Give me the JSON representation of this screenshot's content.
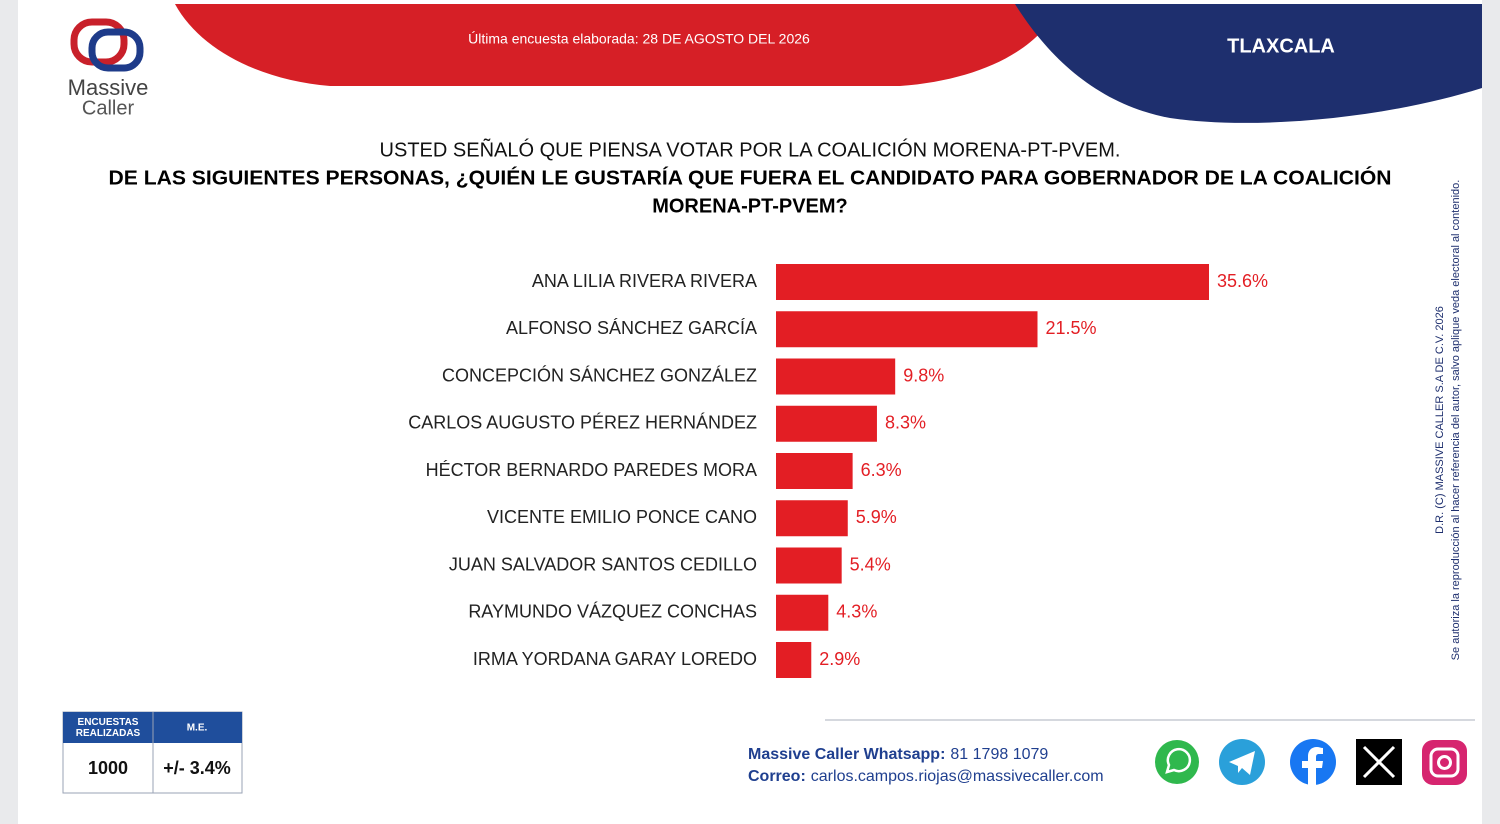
{
  "header": {
    "survey_date": "Última encuesta elaborada: 28 DE AGOSTO DEL 2026",
    "region": "TLAXCALA",
    "logo": {
      "line1": "Massive",
      "line2": "Caller"
    }
  },
  "chart_data": {
    "type": "bar",
    "orientation": "horizontal",
    "title": "USTED SEÑALÓ QUE PIENSA VOTAR POR LA COALICIÓN MORENA-PT-PVEM.",
    "subtitle": [
      "DE LAS SIGUIENTES PERSONAS, ¿QUIÉN LE GUSTARÍA QUE FUERA EL CANDIDATO PARA GOBERNADOR DE LA COALICIÓN",
      "MORENA-PT-PVEM?"
    ],
    "categories": [
      "ANA LILIA RIVERA RIVERA",
      "ALFONSO SÁNCHEZ GARCÍA",
      "CONCEPCIÓN SÁNCHEZ GONZÁLEZ",
      "CARLOS AUGUSTO PÉREZ HERNÁNDEZ",
      "HÉCTOR BERNARDO PAREDES MORA",
      "VICENTE EMILIO PONCE CANO",
      "JUAN SALVADOR SANTOS CEDILLO",
      "RAYMUNDO VÁZQUEZ CONCHAS",
      "IRMA YORDANA GARAY LOREDO"
    ],
    "values": [
      35.6,
      21.5,
      9.8,
      8.3,
      6.3,
      5.9,
      5.4,
      4.3,
      2.9
    ],
    "value_labels": [
      "35.6%",
      "21.5%",
      "9.8%",
      "8.3%",
      "6.3%",
      "5.9%",
      "5.4%",
      "4.3%",
      "2.9%"
    ],
    "color": "#e31e24"
  },
  "footer": {
    "table": {
      "headers": [
        "ENCUESTAS REALIZADAS",
        "M.E."
      ],
      "values": [
        "1000",
        "+/- 3.4%"
      ]
    },
    "whatsapp_label": "Massive Caller Whatsapp:",
    "whatsapp_number": "81 1798 1079",
    "email_label": "Correo:",
    "email": "carlos.campos.riojas@massivecaller.com"
  },
  "copyright": [
    "D.R. (C) MASSIVE CALLER S.A DE C.V. 2026",
    "Se autoriza la reproducción al hacer referencia del autor, salvo aplique veda electoral al contenido."
  ]
}
